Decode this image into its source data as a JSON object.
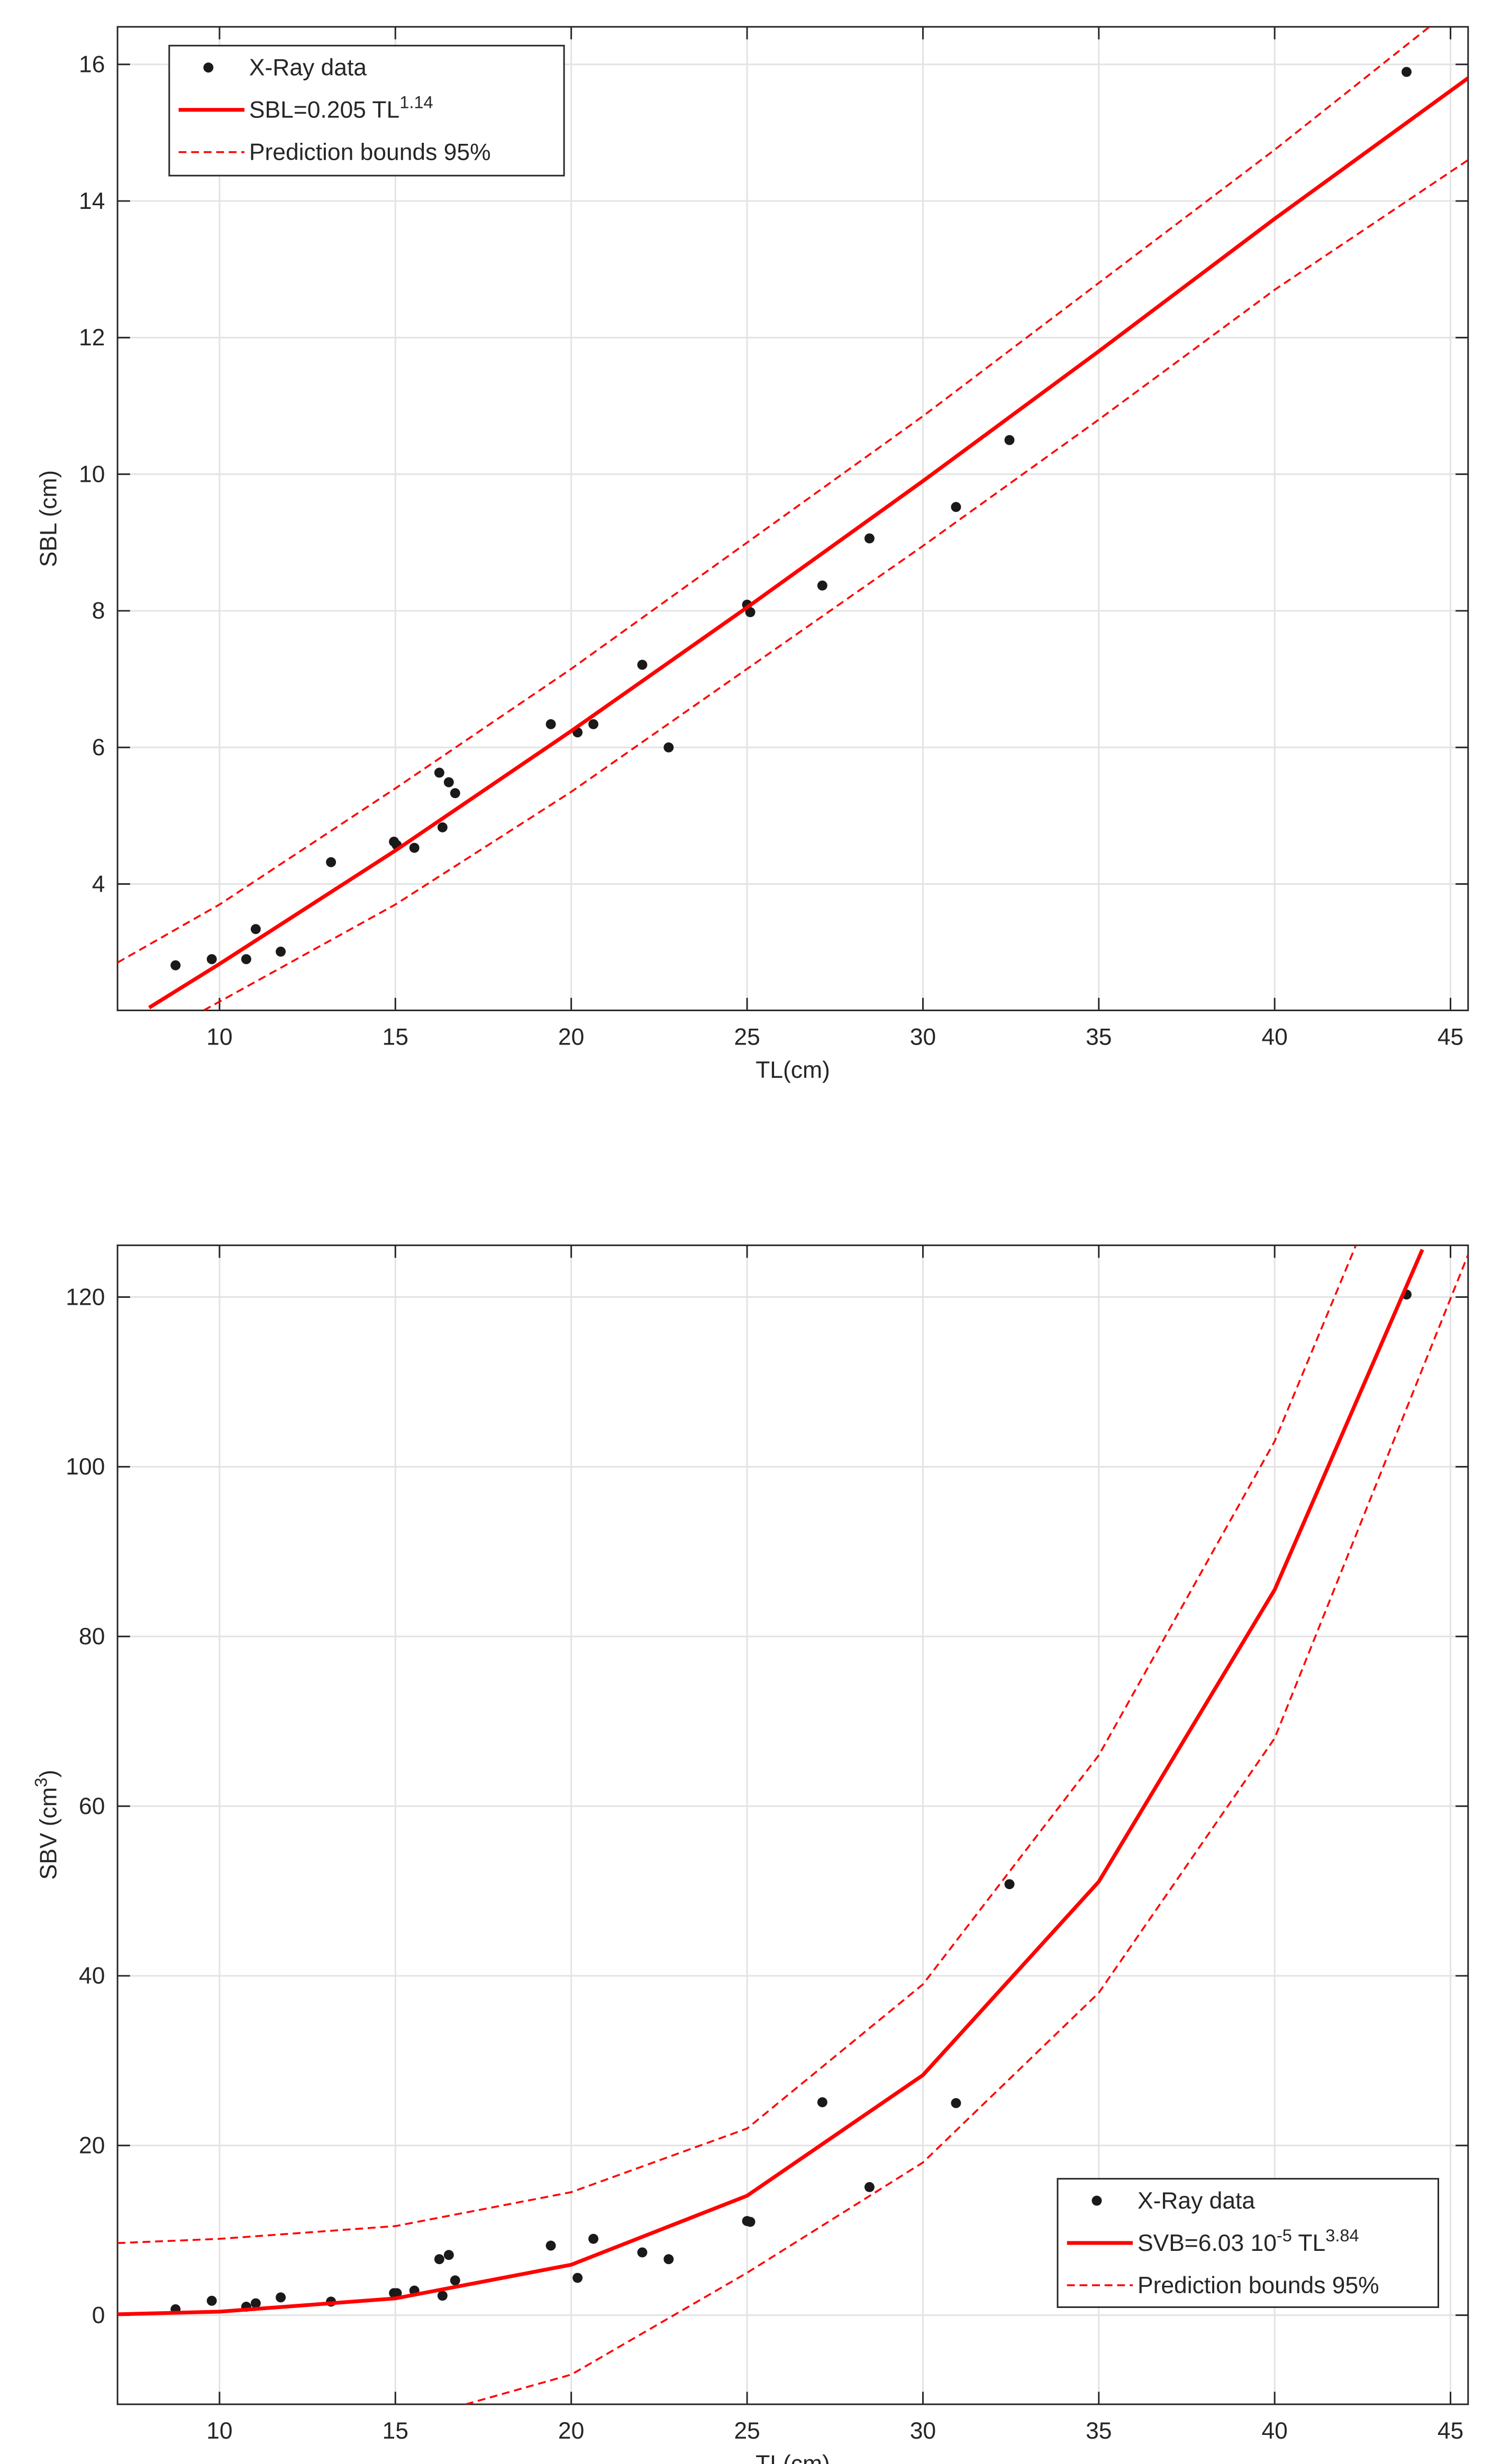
{
  "chart_data": [
    {
      "type": "scatter",
      "x_label": "TL(cm)",
      "y_label": [
        {
          "text": "SBL (cm)",
          "sup": false
        }
      ],
      "xlim": [
        7.1,
        45.5
      ],
      "ylim": [
        2.15,
        16.55
      ],
      "xticks": [
        10,
        15,
        20,
        25,
        30,
        35,
        40,
        45
      ],
      "yticks": [
        4,
        6,
        8,
        10,
        12,
        14,
        16
      ],
      "grid": true,
      "legend": "upper left",
      "series": [
        {
          "name": [
            {
              "text": "X-Ray data",
              "sup": false
            }
          ],
          "mark": "dot",
          "color": "#1a1a1a",
          "x": [
            8.75,
            9.78,
            10.76,
            11.03,
            11.74,
            13.17,
            14.96,
            15.04,
            15.54,
            16.25,
            16.34,
            16.52,
            16.7,
            19.42,
            20.18,
            20.63,
            22.02,
            22.77,
            25.0,
            25.09,
            27.14,
            28.48,
            30.94,
            32.46,
            43.75
          ],
          "values": [
            2.81,
            2.9,
            2.9,
            3.34,
            3.01,
            4.32,
            4.62,
            4.57,
            4.53,
            5.63,
            4.83,
            5.49,
            5.33,
            6.34,
            6.22,
            6.34,
            7.21,
            6.0,
            8.09,
            7.98,
            8.37,
            9.06,
            9.52,
            10.5,
            15.89
          ]
        },
        {
          "name": [
            {
              "text": "SBL=0.205 TL",
              "sup": false
            },
            {
              "text": "1.14",
              "sup": true
            }
          ],
          "mark": "line",
          "dashed": false,
          "color": "#ff0000",
          "x": [
            8,
            10,
            15,
            20,
            25,
            30,
            35,
            40,
            45.5
          ],
          "values": [
            2.19,
            2.83,
            4.49,
            6.24,
            8.05,
            9.9,
            11.8,
            13.74,
            15.8
          ]
        },
        {
          "name": [
            {
              "text": "Prediction bounds 95%",
              "sup": false
            }
          ],
          "mark": "line",
          "dashed": true,
          "color": "#ff0000",
          "x": [
            7.1,
            10,
            15,
            20,
            25,
            30,
            35,
            40,
            44.4
          ],
          "values": [
            2.85,
            3.7,
            5.4,
            7.15,
            9.0,
            10.85,
            12.8,
            14.75,
            16.55
          ]
        },
        {
          "name": null,
          "mark": "line",
          "dashed": true,
          "color": "#ff0000",
          "x": [
            9.55,
            15,
            20,
            25,
            30,
            35,
            40,
            45.5
          ],
          "values": [
            2.15,
            3.7,
            5.35,
            7.15,
            8.95,
            10.8,
            12.7,
            14.6
          ]
        }
      ]
    },
    {
      "type": "scatter",
      "x_label": "TL(cm)",
      "y_label": [
        {
          "text": "SBV (cm",
          "sup": false
        },
        {
          "text": "3",
          "sup": true
        },
        {
          "text": ")",
          "sup": false
        }
      ],
      "xlim": [
        7.1,
        45.5
      ],
      "ylim": [
        -10.5,
        126.1
      ],
      "xticks": [
        10,
        15,
        20,
        25,
        30,
        35,
        40,
        45
      ],
      "yticks": [
        0,
        20,
        40,
        60,
        80,
        100,
        120
      ],
      "grid": true,
      "legend": "lower right",
      "series": [
        {
          "name": [
            {
              "text": "X-Ray data",
              "sup": false
            }
          ],
          "mark": "dot",
          "color": "#1a1a1a",
          "x": [
            8.75,
            9.78,
            10.76,
            11.03,
            11.74,
            13.17,
            14.96,
            15.04,
            15.54,
            16.25,
            16.34,
            16.52,
            16.7,
            19.42,
            20.18,
            20.63,
            22.02,
            22.77,
            25.0,
            25.09,
            27.14,
            28.48,
            30.94,
            32.46,
            43.75
          ],
          "values": [
            0.7,
            1.7,
            1.0,
            1.4,
            2.1,
            1.6,
            2.6,
            2.6,
            2.9,
            6.6,
            2.3,
            7.1,
            4.1,
            8.2,
            4.4,
            9.0,
            7.4,
            6.6,
            11.1,
            11.0,
            25.1,
            15.1,
            25.0,
            50.8,
            120.3
          ]
        },
        {
          "name": [
            {
              "text": "SVB=6.03 10",
              "sup": false
            },
            {
              "text": "-5",
              "sup": true
            },
            {
              "text": " TL",
              "sup": false
            },
            {
              "text": "3.84",
              "sup": true
            }
          ],
          "mark": "line",
          "dashed": false,
          "color": "#ff0000",
          "x": [
            7.1,
            10,
            15,
            20,
            25,
            30,
            35,
            40,
            44.2
          ],
          "values": [
            0.11,
            0.42,
            1.98,
            5.95,
            14.08,
            28.3,
            51.1,
            85.5,
            125.6
          ]
        },
        {
          "name": [
            {
              "text": "Prediction bounds 95%",
              "sup": false
            }
          ],
          "mark": "line",
          "dashed": true,
          "color": "#ff0000",
          "x": [
            7.1,
            10,
            15,
            20,
            25,
            30,
            35,
            40,
            42.3
          ],
          "values": [
            8.5,
            9.0,
            10.5,
            14.5,
            22,
            39,
            66,
            103,
            126
          ]
        },
        {
          "name": null,
          "mark": "line",
          "dashed": true,
          "color": "#ff0000",
          "x": [
            17,
            20,
            25,
            30,
            35,
            40,
            45.5
          ],
          "values": [
            -10.5,
            -7,
            5,
            18,
            38,
            68,
            125
          ]
        }
      ]
    }
  ]
}
